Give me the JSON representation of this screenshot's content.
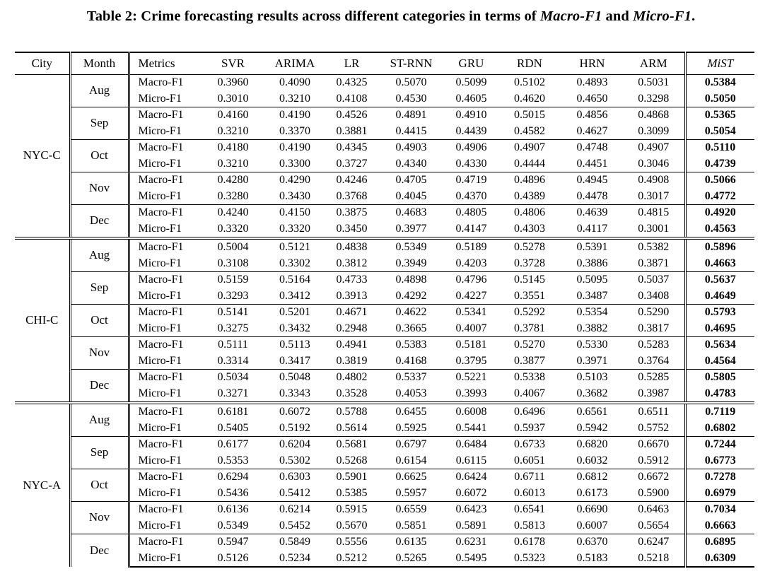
{
  "caption": {
    "prefix": "Table 2: Crime forecasting results across different categories in terms of ",
    "metric1": "Macro-F1",
    "and": " and ",
    "metric2": "Micro-F1",
    "suffix": "."
  },
  "headers": [
    "City",
    "Month",
    "Metrics",
    "SVR",
    "ARIMA",
    "LR",
    "ST-RNN",
    "GRU",
    "RDN",
    "HRN",
    "ARM",
    "MiST"
  ],
  "cities": [
    {
      "name": "NYC-C",
      "months": [
        {
          "name": "Aug",
          "rows": [
            {
              "metric": "Macro-F1",
              "values": [
                "0.3960",
                "0.4090",
                "0.4325",
                "0.5070",
                "0.5099",
                "0.5102",
                "0.4893",
                "0.5031",
                "0.5384"
              ]
            },
            {
              "metric": "Micro-F1",
              "values": [
                "0.3010",
                "0.3210",
                "0.4108",
                "0.4530",
                "0.4605",
                "0.4620",
                "0.4650",
                "0.3298",
                "0.5050"
              ]
            }
          ]
        },
        {
          "name": "Sep",
          "rows": [
            {
              "metric": "Macro-F1",
              "values": [
                "0.4160",
                "0.4190",
                "0.4526",
                "0.4891",
                "0.4910",
                "0.5015",
                "0.4856",
                "0.4868",
                "0.5365"
              ]
            },
            {
              "metric": "Micro-F1",
              "values": [
                "0.3210",
                "0.3370",
                "0.3881",
                "0.4415",
                "0.4439",
                "0.4582",
                "0.4627",
                "0.3099",
                "0.5054"
              ]
            }
          ]
        },
        {
          "name": "Oct",
          "rows": [
            {
              "metric": "Macro-F1",
              "values": [
                "0.4180",
                "0.4190",
                "0.4345",
                "0.4903",
                "0.4906",
                "0.4907",
                "0.4748",
                "0.4907",
                "0.5110"
              ]
            },
            {
              "metric": "Micro-F1",
              "values": [
                "0.3210",
                "0.3300",
                "0.3727",
                "0.4340",
                "0.4330",
                "0.4444",
                "0.4451",
                "0.3046",
                "0.4739"
              ]
            }
          ]
        },
        {
          "name": "Nov",
          "rows": [
            {
              "metric": "Macro-F1",
              "values": [
                "0.4280",
                "0.4290",
                "0.4246",
                "0.4705",
                "0.4719",
                "0.4896",
                "0.4945",
                "0.4908",
                "0.5066"
              ]
            },
            {
              "metric": "Micro-F1",
              "values": [
                "0.3280",
                "0.3430",
                "0.3768",
                "0.4045",
                "0.4370",
                "0.4389",
                "0.4478",
                "0.3017",
                "0.4772"
              ]
            }
          ]
        },
        {
          "name": "Dec",
          "rows": [
            {
              "metric": "Macro-F1",
              "values": [
                "0.4240",
                "0.4150",
                "0.3875",
                "0.4683",
                "0.4805",
                "0.4806",
                "0.4639",
                "0.4815",
                "0.4920"
              ]
            },
            {
              "metric": "Micro-F1",
              "values": [
                "0.3320",
                "0.3320",
                "0.3450",
                "0.3977",
                "0.4147",
                "0.4303",
                "0.4117",
                "0.3001",
                "0.4563"
              ]
            }
          ]
        }
      ]
    },
    {
      "name": "CHI-C",
      "months": [
        {
          "name": "Aug",
          "rows": [
            {
              "metric": "Macro-F1",
              "values": [
                "0.5004",
                "0.5121",
                "0.4838",
                "0.5349",
                "0.5189",
                "0.5278",
                "0.5391",
                "0.5382",
                "0.5896"
              ]
            },
            {
              "metric": "Micro-F1",
              "values": [
                "0.3108",
                "0.3302",
                "0.3812",
                "0.3949",
                "0.4203",
                "0.3728",
                "0.3886",
                "0.3871",
                "0.4663"
              ]
            }
          ]
        },
        {
          "name": "Sep",
          "rows": [
            {
              "metric": "Macro-F1",
              "values": [
                "0.5159",
                "0.5164",
                "0.4733",
                "0.4898",
                "0.4796",
                "0.5145",
                "0.5095",
                "0.5037",
                "0.5637"
              ]
            },
            {
              "metric": "Micro-F1",
              "values": [
                "0.3293",
                "0.3412",
                "0.3913",
                "0.4292",
                "0.4227",
                "0.3551",
                "0.3487",
                "0.3408",
                "0.4649"
              ]
            }
          ]
        },
        {
          "name": "Oct",
          "rows": [
            {
              "metric": "Macro-F1",
              "values": [
                "0.5141",
                "0.5201",
                "0.4671",
                "0.4622",
                "0.5341",
                "0.5292",
                "0.5354",
                "0.5290",
                "0.5793"
              ]
            },
            {
              "metric": "Micro-F1",
              "values": [
                "0.3275",
                "0.3432",
                "0.2948",
                "0.3665",
                "0.4007",
                "0.3781",
                "0.3882",
                "0.3817",
                "0.4695"
              ]
            }
          ]
        },
        {
          "name": "Nov",
          "rows": [
            {
              "metric": "Macro-F1",
              "values": [
                "0.5111",
                "0.5113",
                "0.4941",
                "0.5383",
                "0.5181",
                "0.5270",
                "0.5330",
                "0.5283",
                "0.5634"
              ]
            },
            {
              "metric": "Micro-F1",
              "values": [
                "0.3314",
                "0.3417",
                "0.3819",
                "0.4168",
                "0.3795",
                "0.3877",
                "0.3971",
                "0.3764",
                "0.4564"
              ]
            }
          ]
        },
        {
          "name": "Dec",
          "rows": [
            {
              "metric": "Macro-F1",
              "values": [
                "0.5034",
                "0.5048",
                "0.4802",
                "0.5337",
                "0.5221",
                "0.5338",
                "0.5103",
                "0.5285",
                "0.5805"
              ]
            },
            {
              "metric": "Micro-F1",
              "values": [
                "0.3271",
                "0.3343",
                "0.3528",
                "0.4053",
                "0.3993",
                "0.4067",
                "0.3682",
                "0.3987",
                "0.4783"
              ]
            }
          ]
        }
      ]
    },
    {
      "name": "NYC-A",
      "months": [
        {
          "name": "Aug",
          "rows": [
            {
              "metric": "Macro-F1",
              "values": [
                "0.6181",
                "0.6072",
                "0.5788",
                "0.6455",
                "0.6008",
                "0.6496",
                "0.6561",
                "0.6511",
                "0.7119"
              ]
            },
            {
              "metric": "Micro-F1",
              "values": [
                "0.5405",
                "0.5192",
                "0.5614",
                "0.5925",
                "0.5441",
                "0.5937",
                "0.5942",
                "0.5752",
                "0.6802"
              ]
            }
          ]
        },
        {
          "name": "Sep",
          "rows": [
            {
              "metric": "Macro-F1",
              "values": [
                "0.6177",
                "0.6204",
                "0.5681",
                "0.6797",
                "0.6484",
                "0.6733",
                "0.6820",
                "0.6670",
                "0.7244"
              ]
            },
            {
              "metric": "Micro-F1",
              "values": [
                "0.5353",
                "0.5302",
                "0.5268",
                "0.6154",
                "0.6115",
                "0.6051",
                "0.6032",
                "0.5912",
                "0.6773"
              ]
            }
          ]
        },
        {
          "name": "Oct",
          "rows": [
            {
              "metric": "Macro-F1",
              "values": [
                "0.6294",
                "0.6303",
                "0.5901",
                "0.6625",
                "0.6424",
                "0.6711",
                "0.6812",
                "0.6672",
                "0.7278"
              ]
            },
            {
              "metric": "Micro-F1",
              "values": [
                "0.5436",
                "0.5412",
                "0.5385",
                "0.5957",
                "0.6072",
                "0.6013",
                "0.6173",
                "0.5900",
                "0.6979"
              ]
            }
          ]
        },
        {
          "name": "Nov",
          "rows": [
            {
              "metric": "Macro-F1",
              "values": [
                "0.6136",
                "0.6214",
                "0.5915",
                "0.6559",
                "0.6423",
                "0.6541",
                "0.6690",
                "0.6463",
                "0.7034"
              ]
            },
            {
              "metric": "Micro-F1",
              "values": [
                "0.5349",
                "0.5452",
                "0.5670",
                "0.5851",
                "0.5891",
                "0.5813",
                "0.6007",
                "0.5654",
                "0.6663"
              ]
            }
          ]
        },
        {
          "name": "Dec",
          "rows": [
            {
              "metric": "Macro-F1",
              "values": [
                "0.5947",
                "0.5849",
                "0.5556",
                "0.6135",
                "0.6231",
                "0.6178",
                "0.6370",
                "0.6247",
                "0.6895"
              ]
            },
            {
              "metric": "Micro-F1",
              "values": [
                "0.5126",
                "0.5234",
                "0.5212",
                "0.5265",
                "0.5495",
                "0.5323",
                "0.5183",
                "0.5218",
                "0.6309"
              ]
            }
          ]
        }
      ]
    }
  ]
}
